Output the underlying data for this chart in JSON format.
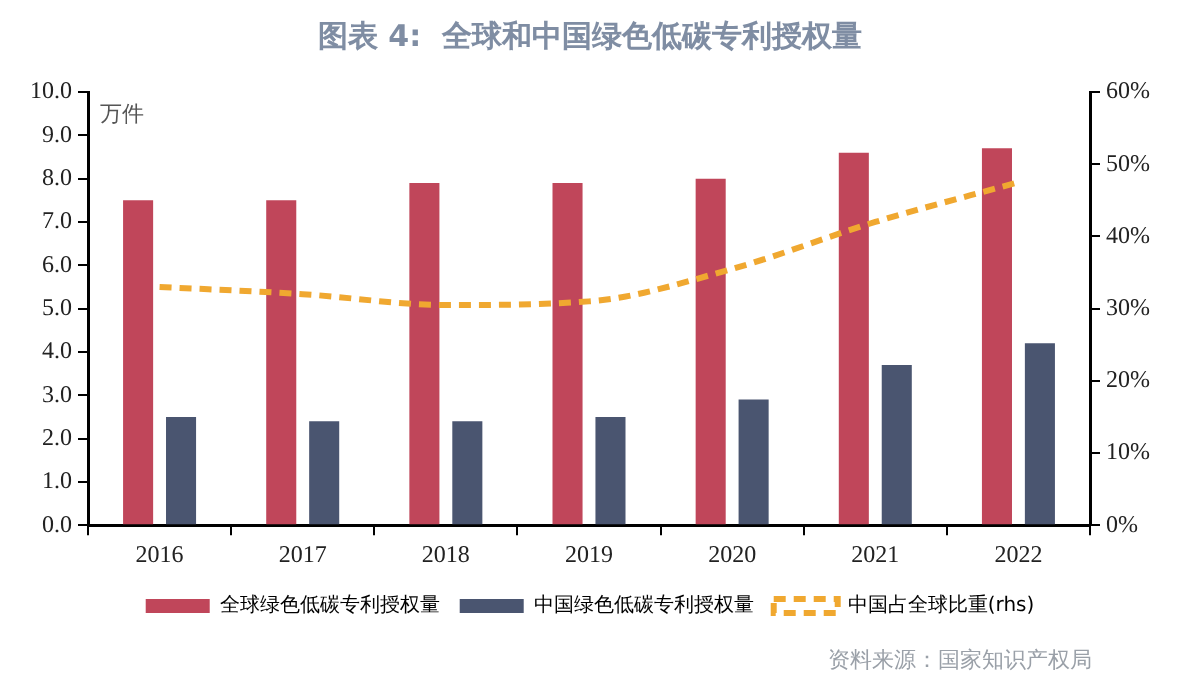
{
  "chart_data": {
    "type": "bar",
    "title": "图表 4:  全球和中国绿色低碳专利授权量",
    "ylabel": "万件",
    "categories": [
      "2016",
      "2017",
      "2018",
      "2019",
      "2020",
      "2021",
      "2022"
    ],
    "series": [
      {
        "name": "全球绿色低碳专利授权量",
        "color": "#c0465a",
        "values": [
          7.5,
          7.5,
          7.9,
          7.9,
          8.0,
          8.6,
          8.7
        ]
      },
      {
        "name": "中国绿色低碳专利授权量",
        "color": "#4a5570",
        "values": [
          2.5,
          2.4,
          2.4,
          2.5,
          2.9,
          3.7,
          4.2
        ]
      },
      {
        "name": "中国占全球比重(rhs)",
        "type": "line",
        "axis": "y2",
        "color": "#f0a830",
        "line_style": "dashed",
        "marker": "none",
        "values": [
          33,
          32,
          30.5,
          31,
          35.5,
          42,
          47.5
        ]
      }
    ],
    "ylim": [
      0,
      10
    ],
    "yticks": [
      {
        "value": 0,
        "label": "0.0"
      },
      {
        "value": 1,
        "label": "1.0"
      },
      {
        "value": 2,
        "label": "2.0"
      },
      {
        "value": 3,
        "label": "3.0"
      },
      {
        "value": 4,
        "label": "4.0"
      },
      {
        "value": 5,
        "label": "5.0"
      },
      {
        "value": 6,
        "label": "6.0"
      },
      {
        "value": 7,
        "label": "7.0"
      },
      {
        "value": 8,
        "label": "8.0"
      },
      {
        "value": 9,
        "label": "9.0"
      },
      {
        "value": 10,
        "label": "10.0"
      }
    ],
    "y2lim": [
      0,
      60
    ],
    "y2ticks": [
      {
        "value": 0,
        "label": "0%"
      },
      {
        "value": 10,
        "label": "10%"
      },
      {
        "value": 20,
        "label": "20%"
      },
      {
        "value": 30,
        "label": "30%"
      },
      {
        "value": 40,
        "label": "40%"
      },
      {
        "value": 50,
        "label": "50%"
      },
      {
        "value": 60,
        "label": "60%"
      }
    ],
    "grid": false,
    "legend": "bottom",
    "annotations": [
      "资料来源：国家知识产权局"
    ]
  }
}
